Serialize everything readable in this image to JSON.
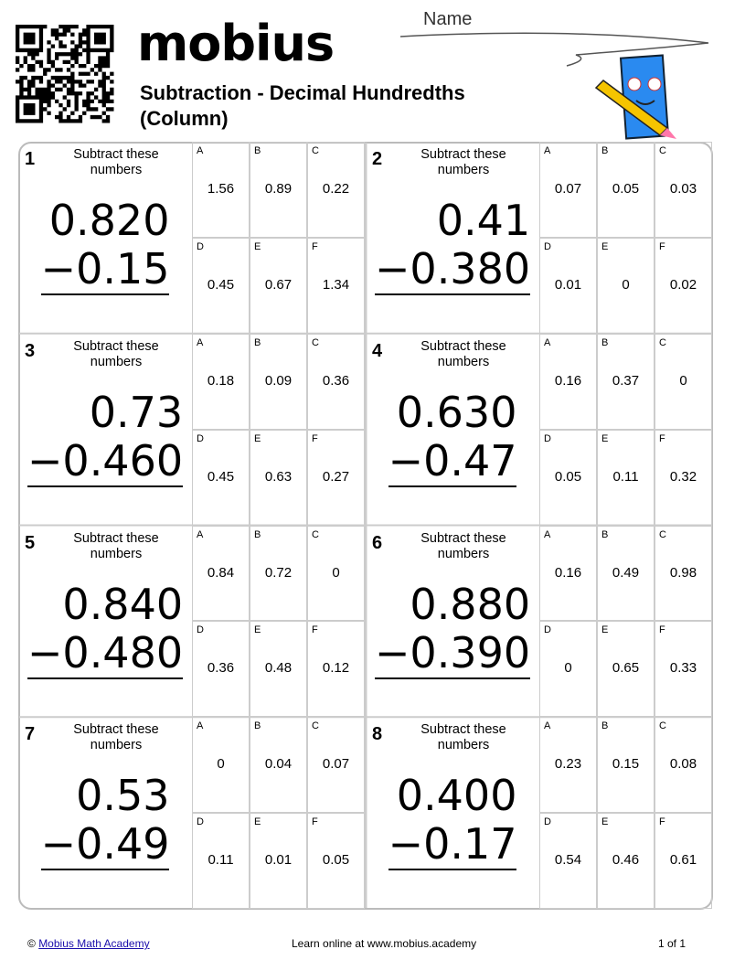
{
  "header": {
    "logo": "mobius",
    "title": "Subtraction - Decimal Hundredths (Column)",
    "name_label": "Name"
  },
  "problems": [
    {
      "number": "1",
      "instruction": "Subtract these numbers",
      "minuend": "0.820",
      "sign": "−",
      "subtrahend": "0.15",
      "options": [
        {
          "letter": "A",
          "value": "1.56"
        },
        {
          "letter": "B",
          "value": "0.89"
        },
        {
          "letter": "C",
          "value": "0.22"
        },
        {
          "letter": "D",
          "value": "0.45"
        },
        {
          "letter": "E",
          "value": "0.67"
        },
        {
          "letter": "F",
          "value": "1.34"
        }
      ]
    },
    {
      "number": "2",
      "instruction": "Subtract these numbers",
      "minuend": "0.41",
      "sign": "−",
      "subtrahend": "0.380",
      "options": [
        {
          "letter": "A",
          "value": "0.07"
        },
        {
          "letter": "B",
          "value": "0.05"
        },
        {
          "letter": "C",
          "value": "0.03"
        },
        {
          "letter": "D",
          "value": "0.01"
        },
        {
          "letter": "E",
          "value": "0"
        },
        {
          "letter": "F",
          "value": "0.02"
        }
      ]
    },
    {
      "number": "3",
      "instruction": "Subtract these numbers",
      "minuend": "0.73",
      "sign": "−",
      "subtrahend": "0.460",
      "options": [
        {
          "letter": "A",
          "value": "0.18"
        },
        {
          "letter": "B",
          "value": "0.09"
        },
        {
          "letter": "C",
          "value": "0.36"
        },
        {
          "letter": "D",
          "value": "0.45"
        },
        {
          "letter": "E",
          "value": "0.63"
        },
        {
          "letter": "F",
          "value": "0.27"
        }
      ]
    },
    {
      "number": "4",
      "instruction": "Subtract these numbers",
      "minuend": "0.630",
      "sign": "−",
      "subtrahend": "0.47",
      "options": [
        {
          "letter": "A",
          "value": "0.16"
        },
        {
          "letter": "B",
          "value": "0.37"
        },
        {
          "letter": "C",
          "value": "0"
        },
        {
          "letter": "D",
          "value": "0.05"
        },
        {
          "letter": "E",
          "value": "0.11"
        },
        {
          "letter": "F",
          "value": "0.32"
        }
      ]
    },
    {
      "number": "5",
      "instruction": "Subtract these numbers",
      "minuend": "0.840",
      "sign": "−",
      "subtrahend": "0.480",
      "options": [
        {
          "letter": "A",
          "value": "0.84"
        },
        {
          "letter": "B",
          "value": "0.72"
        },
        {
          "letter": "C",
          "value": "0"
        },
        {
          "letter": "D",
          "value": "0.36"
        },
        {
          "letter": "E",
          "value": "0.48"
        },
        {
          "letter": "F",
          "value": "0.12"
        }
      ]
    },
    {
      "number": "6",
      "instruction": "Subtract these numbers",
      "minuend": "0.880",
      "sign": "−",
      "subtrahend": "0.390",
      "options": [
        {
          "letter": "A",
          "value": "0.16"
        },
        {
          "letter": "B",
          "value": "0.49"
        },
        {
          "letter": "C",
          "value": "0.98"
        },
        {
          "letter": "D",
          "value": "0"
        },
        {
          "letter": "E",
          "value": "0.65"
        },
        {
          "letter": "F",
          "value": "0.33"
        }
      ]
    },
    {
      "number": "7",
      "instruction": "Subtract these numbers",
      "minuend": "0.53",
      "sign": "−",
      "subtrahend": "0.49",
      "options": [
        {
          "letter": "A",
          "value": "0"
        },
        {
          "letter": "B",
          "value": "0.04"
        },
        {
          "letter": "C",
          "value": "0.07"
        },
        {
          "letter": "D",
          "value": "0.11"
        },
        {
          "letter": "E",
          "value": "0.01"
        },
        {
          "letter": "F",
          "value": "0.05"
        }
      ]
    },
    {
      "number": "8",
      "instruction": "Subtract these numbers",
      "minuend": "0.400",
      "sign": "−",
      "subtrahend": "0.17",
      "options": [
        {
          "letter": "A",
          "value": "0.23"
        },
        {
          "letter": "B",
          "value": "0.15"
        },
        {
          "letter": "C",
          "value": "0.08"
        },
        {
          "letter": "D",
          "value": "0.54"
        },
        {
          "letter": "E",
          "value": "0.46"
        },
        {
          "letter": "F",
          "value": "0.61"
        }
      ]
    }
  ],
  "footer": {
    "copyright": "©",
    "link": "Mobius Math Academy",
    "center": "Learn online at www.mobius.academy",
    "page": "1 of 1"
  }
}
